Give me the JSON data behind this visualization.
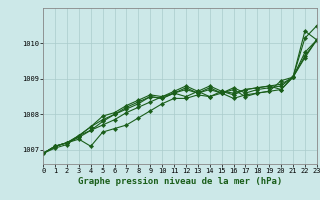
{
  "xlabel": "Graphe pression niveau de la mer (hPa)",
  "x_ticks": [
    0,
    1,
    2,
    3,
    4,
    5,
    6,
    7,
    8,
    9,
    10,
    11,
    12,
    13,
    14,
    15,
    16,
    17,
    18,
    19,
    20,
    21,
    22,
    23
  ],
  "ylim": [
    1006.6,
    1011.0
  ],
  "xlim": [
    0,
    23
  ],
  "yticks": [
    1007,
    1008,
    1009,
    1010
  ],
  "bg_color": "#cce8e8",
  "line_color": "#1a5e1a",
  "grid_color": "#aacccc",
  "series": [
    [
      1006.9,
      1007.1,
      1007.2,
      1007.3,
      1007.1,
      1007.5,
      1007.6,
      1007.7,
      1007.9,
      1008.1,
      1008.3,
      1008.45,
      1008.45,
      1008.55,
      1008.5,
      1008.6,
      1008.45,
      1008.55,
      1008.6,
      1008.65,
      1008.7,
      1009.05,
      1010.15,
      1010.5
    ],
    [
      1006.9,
      1007.1,
      1007.2,
      1007.35,
      1007.55,
      1007.7,
      1007.85,
      1008.05,
      1008.2,
      1008.35,
      1008.5,
      1008.6,
      1008.5,
      1008.65,
      1008.5,
      1008.65,
      1008.6,
      1008.7,
      1008.75,
      1008.8,
      1008.85,
      1009.05,
      1009.65,
      1010.1
    ],
    [
      1006.9,
      1007.1,
      1007.2,
      1007.4,
      1007.65,
      1007.85,
      1008.0,
      1008.15,
      1008.3,
      1008.5,
      1008.45,
      1008.6,
      1008.75,
      1008.6,
      1008.75,
      1008.6,
      1008.7,
      1008.5,
      1008.6,
      1008.65,
      1008.95,
      1009.05,
      1009.6,
      1010.1
    ],
    [
      1006.9,
      1007.1,
      1007.2,
      1007.4,
      1007.65,
      1007.95,
      1008.05,
      1008.25,
      1008.4,
      1008.55,
      1008.5,
      1008.65,
      1008.8,
      1008.65,
      1008.8,
      1008.65,
      1008.55,
      1008.7,
      1008.75,
      1008.8,
      1008.7,
      1009.05,
      1010.35,
      1010.1
    ],
    [
      1006.9,
      1007.05,
      1007.15,
      1007.4,
      1007.55,
      1007.8,
      1008.0,
      1008.2,
      1008.35,
      1008.5,
      1008.45,
      1008.6,
      1008.7,
      1008.6,
      1008.7,
      1008.6,
      1008.75,
      1008.6,
      1008.7,
      1008.75,
      1008.8,
      1009.05,
      1009.75,
      1010.1
    ]
  ],
  "marker": "D",
  "markersize": 2.2,
  "linewidth": 0.8,
  "tick_fontsize": 5.0,
  "xlabel_fontsize": 6.5
}
